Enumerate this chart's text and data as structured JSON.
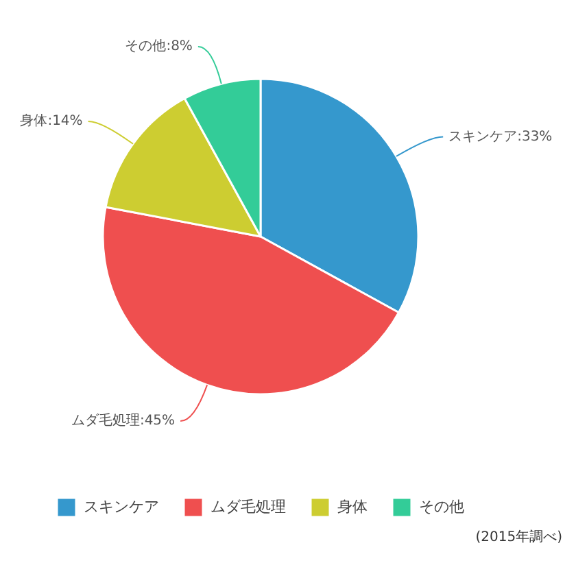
{
  "chart_data": {
    "type": "pie",
    "categories": [
      "スキンケア",
      "ムダ毛処理",
      "身体",
      "その他"
    ],
    "values": [
      33,
      45,
      14,
      8
    ],
    "value_labels": [
      ":33%",
      ":45%",
      ":14%",
      ":8%"
    ],
    "colors": [
      "#3598cd",
      "#ef4f4f",
      "#cdcd31",
      "#33cc98"
    ],
    "data_labels": true,
    "legend": "bottom",
    "annotations": [
      "(2015年調べ)"
    ]
  }
}
